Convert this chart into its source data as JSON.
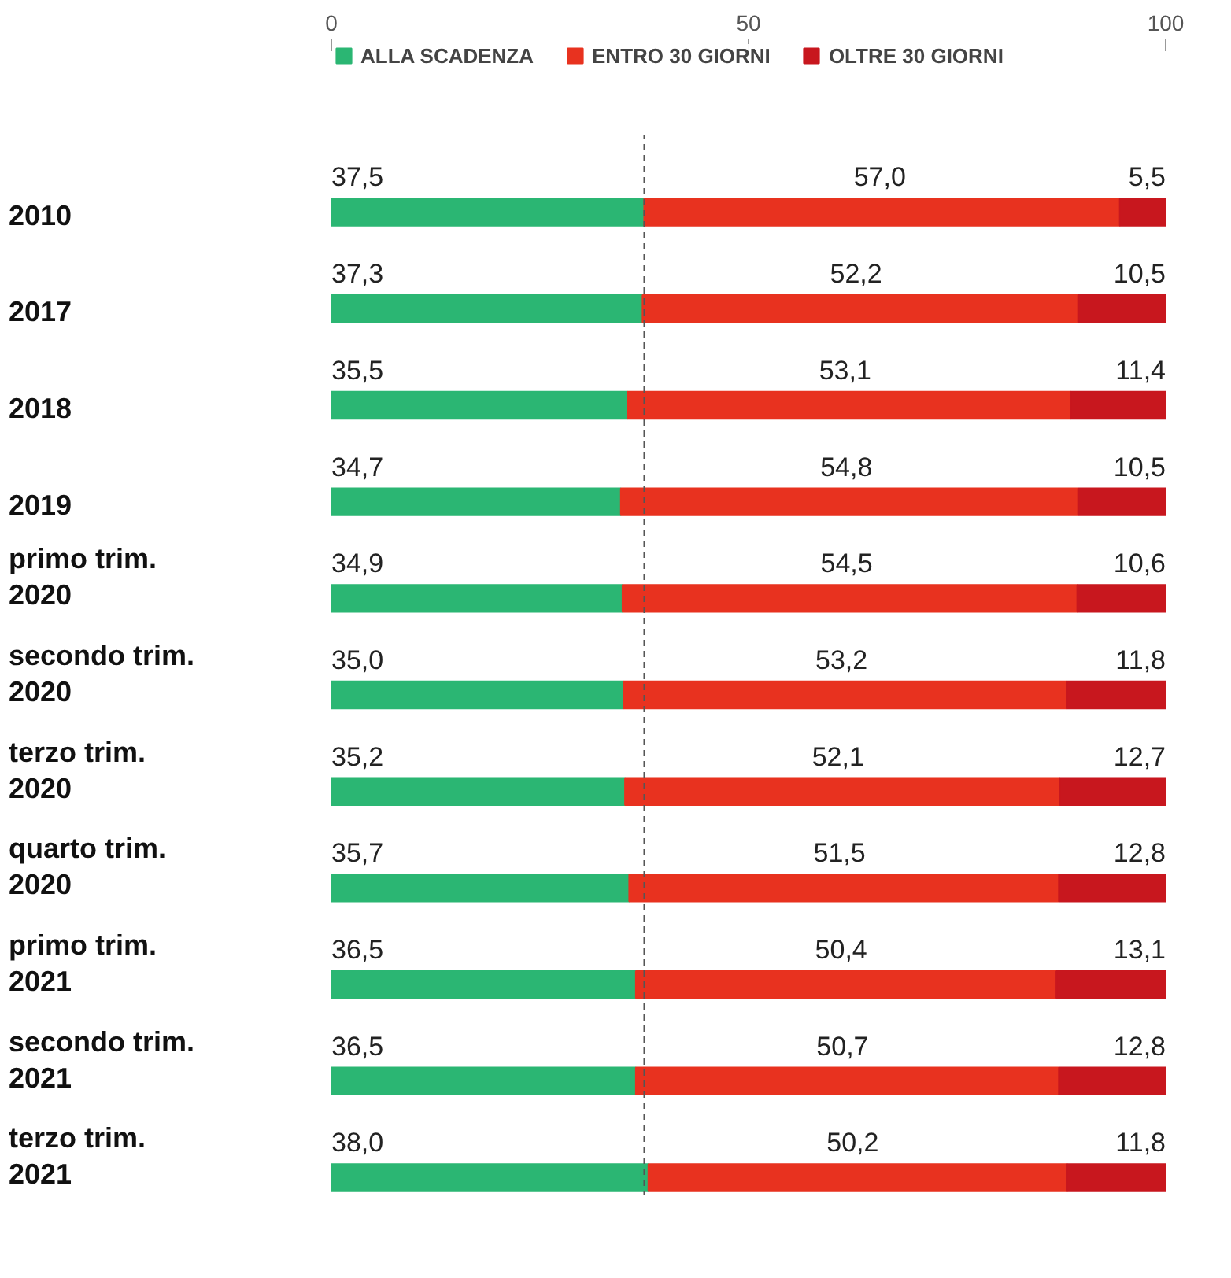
{
  "chart_data": {
    "type": "bar",
    "orientation": "horizontal",
    "stacked": true,
    "categories": [
      "2010",
      "2017",
      "2018",
      "2019",
      "primo trim.\n2020",
      "secondo trim.\n2020",
      "terzo trim.\n2020",
      "quarto trim.\n2020",
      "primo trim.\n2021",
      "secondo trim.\n2021",
      "terzo trim.\n2021"
    ],
    "series": [
      {
        "name": "ALLA SCADENZA",
        "color": "#2bb673",
        "values": [
          37.5,
          37.3,
          35.5,
          34.7,
          34.9,
          35.0,
          35.2,
          35.7,
          36.5,
          36.5,
          38.0
        ],
        "value_labels": [
          "37,5",
          "37,3",
          "35,5",
          "34,7",
          "34,9",
          "35,0",
          "35,2",
          "35,7",
          "36,5",
          "36,5",
          "38,0"
        ]
      },
      {
        "name": "ENTRO 30 GIORNI",
        "color": "#e8321f",
        "values": [
          57.0,
          52.2,
          53.1,
          54.8,
          54.5,
          53.2,
          52.1,
          51.5,
          50.4,
          50.7,
          50.2
        ],
        "value_labels": [
          "57,0",
          "52,2",
          "53,1",
          "54,8",
          "54,5",
          "53,2",
          "52,1",
          "51,5",
          "50,4",
          "50,7",
          "50,2"
        ]
      },
      {
        "name": "OLTRE 30 GIORNI",
        "color": "#c8171e",
        "values": [
          5.5,
          10.5,
          11.4,
          10.5,
          10.6,
          11.8,
          12.7,
          12.8,
          13.1,
          12.8,
          11.8
        ],
        "value_labels": [
          "5,5",
          "10,5",
          "11,4",
          "10,5",
          "10,6",
          "11,8",
          "12,7",
          "12,8",
          "13,1",
          "12,8",
          "11,8"
        ]
      }
    ],
    "xlim": [
      0,
      100
    ],
    "xticks": [
      0,
      50,
      100
    ],
    "ref_lines": [
      {
        "axis": "x",
        "value": 37.5,
        "line_style": "dashed",
        "color": "#555555"
      }
    ],
    "legend": "top left",
    "grid": false
  }
}
